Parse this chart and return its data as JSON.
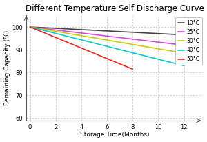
{
  "title": "Different Temperature Self Discharge Curve",
  "xlabel": "Storage Time(Months)",
  "ylabel": "Remaining Capacity (%)",
  "xlim": [
    -0.3,
    13.5
  ],
  "ylim": [
    59,
    105
  ],
  "xticks": [
    0,
    2,
    4,
    6,
    8,
    10,
    12
  ],
  "yticks": [
    60,
    70,
    80,
    90,
    100
  ],
  "series": [
    {
      "label": "10°C",
      "color": "#444444",
      "x": [
        0,
        12
      ],
      "y": [
        100,
        96.5
      ]
    },
    {
      "label": "25°C",
      "color": "#dd44dd",
      "x": [
        0,
        12
      ],
      "y": [
        100,
        92.0
      ]
    },
    {
      "label": "30°C",
      "color": "#cccc00",
      "x": [
        0,
        12
      ],
      "y": [
        100,
        88.5
      ]
    },
    {
      "label": "40°C",
      "color": "#00cccc",
      "x": [
        0,
        12
      ],
      "y": [
        100,
        83.0
      ]
    },
    {
      "label": "50°C",
      "color": "#ee2222",
      "x": [
        0,
        8
      ],
      "y": [
        100,
        81.5
      ]
    }
  ],
  "grid_color": "#bbbbbb",
  "grid_style": "--",
  "background_color": "#ffffff",
  "legend_fontsize": 5.5,
  "title_fontsize": 8.5,
  "axis_label_fontsize": 6.5,
  "tick_fontsize": 6.0,
  "line_width": 1.2
}
